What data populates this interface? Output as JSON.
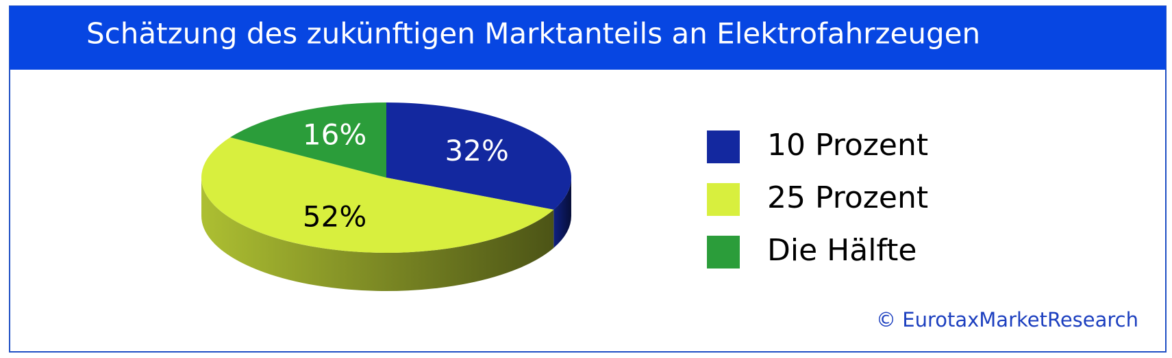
{
  "chart_data": {
    "type": "pie",
    "title": "Schätzung des zukünftigen Marktanteils an Elektrofahrzeugen",
    "categories": [
      "10 Prozent",
      "25 Prozent",
      "Die Hälfte"
    ],
    "values": [
      32,
      52,
      16
    ],
    "value_labels": [
      "32%",
      "52%",
      "16%"
    ],
    "colors": [
      "#13289f",
      "#d8ef3e",
      "#2b9d3a"
    ],
    "source": "© EurotaxMarketResearch"
  }
}
